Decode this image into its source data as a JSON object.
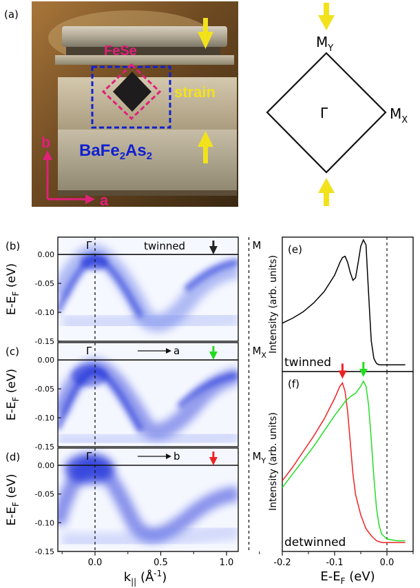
{
  "panel_a": {
    "label": "(a)",
    "photo_text": {
      "fese": "FeSe",
      "strain": "strain",
      "substrate_main": "BaFe",
      "substrate_sub1": "2",
      "substrate_mid": "As",
      "substrate_sub2": "2",
      "axis_b": "b",
      "axis_a": "a"
    },
    "bz": {
      "gamma": "Γ",
      "my_main": "M",
      "my_sub": "Y",
      "mx_main": "M",
      "mx_sub": "X"
    },
    "colors": {
      "fese": "#e0207a",
      "substrate": "#1020d0",
      "strain_arrow": "#f2e21c",
      "axes": "#e0207a"
    }
  },
  "arpes": {
    "panels": [
      {
        "label": "(b)",
        "title": "twinned",
        "gamma": "Γ",
        "m_main": "M",
        "m_sub": "",
        "arrow_color": "#222222",
        "direction": ""
      },
      {
        "label": "(c)",
        "title": "",
        "gamma": "Γ",
        "m_main": "M",
        "m_sub": "X",
        "arrow_color": "#22dd22",
        "direction": "a"
      },
      {
        "label": "(d)",
        "title": "",
        "gamma": "Γ",
        "m_main": "M",
        "m_sub": "Y",
        "arrow_color": "#ee2222",
        "direction": "b"
      }
    ],
    "y_axis_main": "E-E",
    "y_axis_sub": "F",
    "y_axis_unit": " (eV)",
    "y_ticks": [
      "0.00",
      "-0.05",
      "-0.10",
      "-0.15"
    ],
    "x_axis_main": "k",
    "x_axis_sub": "||",
    "x_axis_unit": " (Å",
    "x_axis_sup": "-1",
    "x_axis_end": ")",
    "x_ticks": [
      "0.0",
      "0.5",
      "1.0"
    ],
    "band_color": "#1a2fd8"
  },
  "edc": {
    "panel_e_label": "(e)",
    "panel_e_caption": "twinned",
    "panel_f_label": "(f)",
    "panel_f_caption": "detwinned",
    "y_label": "Intensity (arb. units)",
    "x_axis_main": "E-E",
    "x_axis_sub": "F",
    "x_axis_unit": " (eV)",
    "x_ticks": [
      "-0.2",
      "-0.1",
      "0.0"
    ]
  },
  "chart_data": [
    {
      "type": "line",
      "title": "",
      "xlabel": "E-EF (eV)",
      "ylabel": "Intensity (arb. units)",
      "xlim": [
        -0.2,
        0.05
      ],
      "series": [
        {
          "color": "#000000",
          "x": [
            -0.2,
            -0.18,
            -0.16,
            -0.14,
            -0.12,
            -0.1,
            -0.09,
            -0.085,
            -0.08,
            -0.075,
            -0.07,
            -0.065,
            -0.06,
            -0.055,
            -0.05,
            -0.045,
            -0.04,
            -0.037,
            -0.033,
            -0.03,
            -0.025,
            -0.02,
            -0.015,
            -0.01,
            0.0,
            0.02,
            0.035
          ],
          "y": [
            0.34,
            0.38,
            0.43,
            0.5,
            0.59,
            0.72,
            0.82,
            0.86,
            0.87,
            0.82,
            0.74,
            0.68,
            0.7,
            0.82,
            0.95,
            1.0,
            0.96,
            0.72,
            0.42,
            0.2,
            0.06,
            0.02,
            0.01,
            0.01,
            0.01,
            0.01,
            0.01
          ]
        }
      ]
    },
    {
      "type": "line",
      "title": "",
      "xlabel": "E-EF (eV)",
      "ylabel": "Intensity (arb. units)",
      "xlim": [
        -0.2,
        0.05
      ],
      "series": [
        {
          "color": "#ee2222",
          "x": [
            -0.2,
            -0.18,
            -0.16,
            -0.14,
            -0.12,
            -0.1,
            -0.09,
            -0.085,
            -0.08,
            -0.075,
            -0.07,
            -0.065,
            -0.06,
            -0.05,
            -0.04,
            -0.03,
            -0.02,
            -0.01,
            0.0,
            0.02,
            0.035
          ],
          "y": [
            0.38,
            0.46,
            0.55,
            0.64,
            0.74,
            0.86,
            0.93,
            0.95,
            0.9,
            0.78,
            0.6,
            0.42,
            0.3,
            0.18,
            0.1,
            0.06,
            0.03,
            0.02,
            0.02,
            0.02,
            0.02
          ]
        },
        {
          "color": "#22dd22",
          "x": [
            -0.2,
            -0.18,
            -0.16,
            -0.14,
            -0.12,
            -0.1,
            -0.08,
            -0.07,
            -0.06,
            -0.05,
            -0.045,
            -0.04,
            -0.035,
            -0.03,
            -0.025,
            -0.02,
            -0.015,
            -0.01,
            0.0,
            0.02,
            0.035
          ],
          "y": [
            0.34,
            0.42,
            0.5,
            0.58,
            0.67,
            0.76,
            0.84,
            0.87,
            0.89,
            0.93,
            0.96,
            0.93,
            0.82,
            0.62,
            0.4,
            0.22,
            0.12,
            0.07,
            0.04,
            0.03,
            0.03
          ]
        }
      ]
    }
  ]
}
